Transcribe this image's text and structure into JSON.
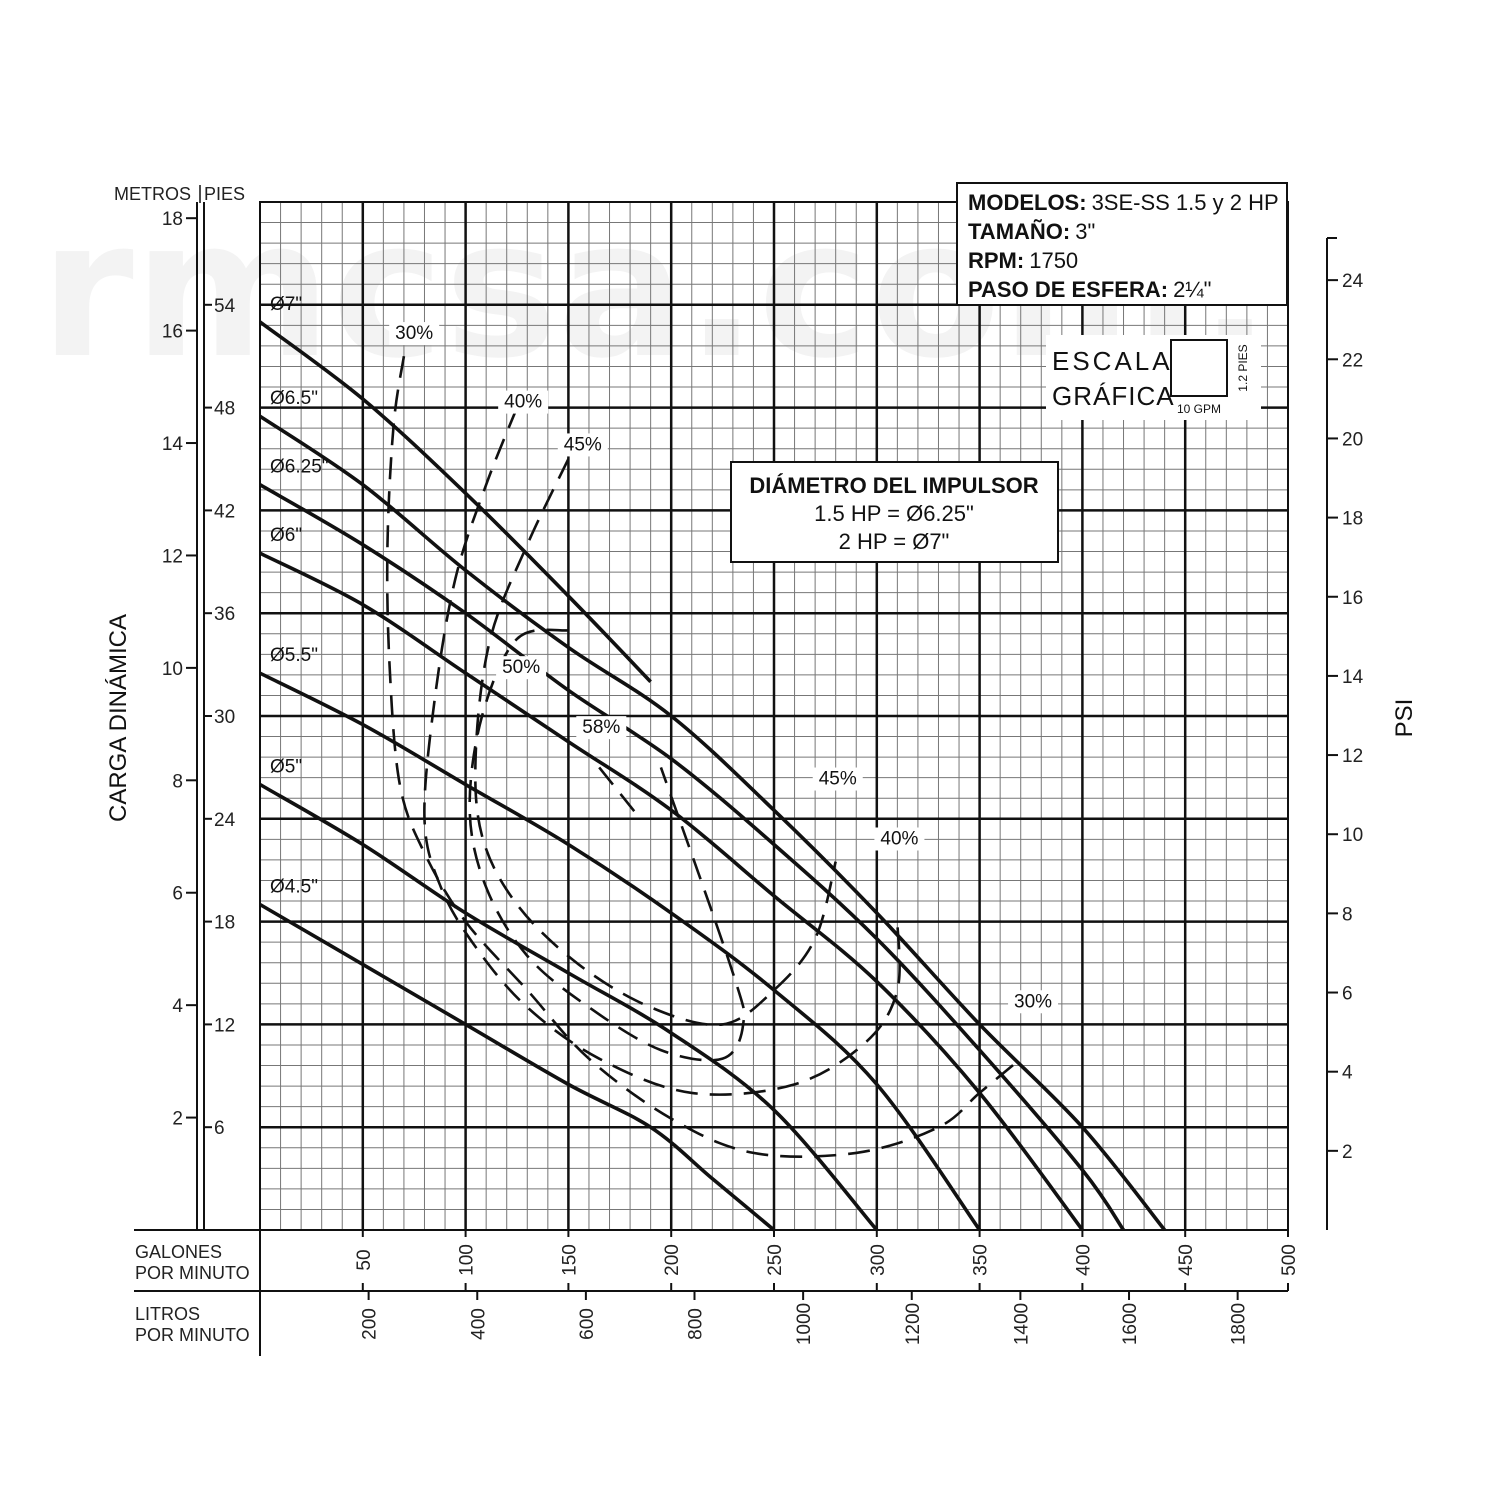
{
  "watermark": "rmcsa.com.",
  "chart_data": {
    "type": "line",
    "title": "",
    "header_box": {
      "models_label": "MODELOS:",
      "models_value": "3SE-SS 1.5 y 2 HP",
      "size_label": "TAMAÑO:",
      "size_value": "3\"",
      "rpm_label": "RPM:",
      "rpm_value": "1750",
      "ball_label": "PASO DE ESFERA:",
      "ball_value": "2¼\""
    },
    "scale_box": {
      "line1": "ESCALA",
      "line2": "GRÁFICA",
      "vertical_label": "1.2 PIES",
      "horizontal_label": "10 GPM"
    },
    "impeller_box": {
      "title": "DIÁMETRO DEL IMPULSOR",
      "line1": "1.5 HP = Ø6.25\"",
      "line2": "2 HP = Ø7\""
    },
    "ylabel_left": "CARGA DINÁMICA",
    "ylabel_right": "PSI",
    "metros_label": "METROS",
    "pies_label": "PIES",
    "x_gpm_label": [
      "GALONES",
      "POR MINUTO"
    ],
    "x_lpm_label": [
      "LITROS",
      "POR MINUTO"
    ],
    "xlim_gpm": [
      0,
      500
    ],
    "ylim_ft": [
      0,
      60
    ],
    "gpm_ticks": [
      "50",
      "100",
      "150",
      "200",
      "250",
      "300",
      "350",
      "400",
      "450",
      "500"
    ],
    "lpm_ticks": [
      "200",
      "400",
      "600",
      "800",
      "1000",
      "1200",
      "1400",
      "1600",
      "1800"
    ],
    "feet_ticks": [
      "6",
      "12",
      "18",
      "24",
      "30",
      "36",
      "42",
      "48",
      "54"
    ],
    "meter_ticks": [
      "2",
      "4",
      "6",
      "8",
      "10",
      "12",
      "14",
      "16",
      "18"
    ],
    "psi_ticks": [
      "2",
      "4",
      "6",
      "8",
      "10",
      "12",
      "14",
      "16",
      "18",
      "20",
      "22",
      "24"
    ],
    "series": [
      {
        "name": "Ø7\"",
        "x": [
          0,
          50,
          100,
          150,
          190
        ],
        "y": [
          53,
          48.5,
          43,
          37,
          32
        ]
      },
      {
        "name": "Ø6.5\"",
        "x": [
          0,
          50,
          100,
          150,
          200,
          250,
          300,
          350,
          400,
          440
        ],
        "y": [
          47.5,
          43.5,
          38.5,
          34,
          30,
          24.5,
          18.5,
          12,
          6,
          0
        ]
      },
      {
        "name": "Ø6.25\"",
        "x": [
          0,
          50,
          100,
          150,
          200,
          250,
          300,
          350,
          400,
          420
        ],
        "y": [
          43.5,
          40,
          36,
          31.5,
          27.5,
          22.5,
          17,
          10.5,
          3.5,
          0
        ]
      },
      {
        "name": "Ø6\"",
        "x": [
          0,
          50,
          100,
          150,
          200,
          250,
          300,
          350,
          400
        ],
        "y": [
          39.5,
          36.5,
          32.5,
          28.5,
          24.5,
          19.5,
          14.5,
          8,
          0
        ]
      },
      {
        "name": "Ø5.5\"",
        "x": [
          0,
          50,
          100,
          150,
          200,
          250,
          300,
          350
        ],
        "y": [
          32.5,
          29.5,
          26,
          22.5,
          18.5,
          14,
          8.5,
          0
        ]
      },
      {
        "name": "Ø5\"",
        "x": [
          0,
          50,
          100,
          150,
          200,
          250,
          300
        ],
        "y": [
          26,
          22.5,
          18.5,
          15,
          11.5,
          7,
          0
        ]
      },
      {
        "name": "Ø4.5\"",
        "x": [
          0,
          50,
          100,
          150,
          190,
          220,
          250
        ],
        "y": [
          19,
          15.5,
          12,
          8.5,
          6,
          3,
          0
        ]
      }
    ],
    "efficiency_labels": [
      "30%",
      "40%",
      "45%",
      "50%",
      "58%",
      "45%",
      "40%",
      "30%"
    ],
    "efficiency_contours": [
      {
        "name": "30%",
        "x": [
          70,
          65,
          62,
          63,
          68,
          80,
          100,
          130,
          160,
          200,
          240,
          290,
          330,
          350,
          370
        ],
        "y": [
          51,
          47,
          40,
          33,
          26,
          22,
          18,
          14,
          10,
          6.5,
          4.5,
          4.5,
          6,
          8,
          10
        ]
      },
      {
        "name": "40%",
        "x": [
          125,
          110,
          95,
          85,
          80,
          88,
          105,
          130,
          165,
          210,
          260,
          295,
          310,
          310
        ],
        "y": [
          48,
          43.5,
          38,
          31,
          24,
          20,
          16.5,
          13,
          10,
          8,
          8.5,
          11,
          14,
          18
        ]
      },
      {
        "name": "45%",
        "x": [
          150,
          130,
          112,
          105,
          108,
          125,
          155,
          190,
          225,
          250,
          270,
          280
        ],
        "y": [
          45,
          40,
          34.5,
          28,
          23,
          19,
          15.5,
          13,
          12,
          14,
          17,
          21.5
        ]
      },
      {
        "name": "50%",
        "x": [
          150,
          125,
          108,
          102,
          110,
          130,
          160,
          195,
          225,
          235,
          230,
          195
        ],
        "y": [
          35,
          34.5,
          30,
          24.5,
          20,
          16,
          13,
          10.5,
          10,
          12,
          15,
          27
        ]
      },
      {
        "name": "58%",
        "x": [
          165,
          185
        ],
        "y": [
          27,
          24
        ]
      }
    ]
  }
}
